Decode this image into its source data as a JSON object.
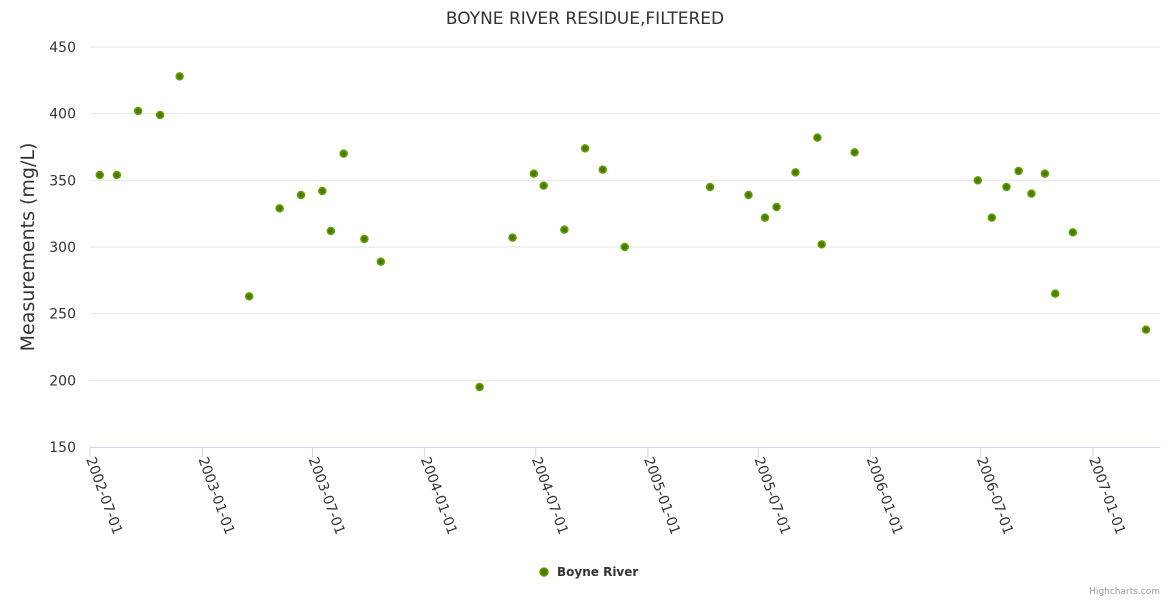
{
  "chart_data": {
    "type": "scatter",
    "title": "BOYNE RIVER RESIDUE,FILTERED",
    "ylabel": "Measurements (mg/L)",
    "xlabel": "",
    "ylim": [
      150,
      450
    ],
    "yticks": [
      150,
      200,
      250,
      300,
      350,
      400,
      450
    ],
    "xticks": [
      "2002-07-01",
      "2003-01-01",
      "2003-07-01",
      "2004-01-01",
      "2004-07-01",
      "2005-01-01",
      "2005-07-01",
      "2006-01-01",
      "2006-07-01",
      "2007-01-01"
    ],
    "grid": true,
    "legend_position": "bottom-center",
    "series": [
      {
        "name": "Boyne River",
        "color": "#66a000",
        "points": [
          {
            "x": "2002-07-17",
            "y": 354
          },
          {
            "x": "2002-08-14",
            "y": 354
          },
          {
            "x": "2002-09-18",
            "y": 402
          },
          {
            "x": "2002-10-24",
            "y": 399
          },
          {
            "x": "2002-11-25",
            "y": 428
          },
          {
            "x": "2003-03-19",
            "y": 263
          },
          {
            "x": "2003-05-08",
            "y": 329
          },
          {
            "x": "2003-06-12",
            "y": 339
          },
          {
            "x": "2003-07-17",
            "y": 342
          },
          {
            "x": "2003-07-31",
            "y": 312
          },
          {
            "x": "2003-08-21",
            "y": 370
          },
          {
            "x": "2003-09-24",
            "y": 306
          },
          {
            "x": "2003-10-21",
            "y": 289
          },
          {
            "x": "2004-03-31",
            "y": 195
          },
          {
            "x": "2004-05-24",
            "y": 307
          },
          {
            "x": "2004-06-28",
            "y": 355
          },
          {
            "x": "2004-07-14",
            "y": 346
          },
          {
            "x": "2004-08-17",
            "y": 313
          },
          {
            "x": "2004-09-20",
            "y": 374
          },
          {
            "x": "2004-10-19",
            "y": 358
          },
          {
            "x": "2004-11-24",
            "y": 300
          },
          {
            "x": "2005-04-13",
            "y": 345
          },
          {
            "x": "2005-06-15",
            "y": 339
          },
          {
            "x": "2005-07-12",
            "y": 322
          },
          {
            "x": "2005-07-31",
            "y": 330
          },
          {
            "x": "2005-08-31",
            "y": 356
          },
          {
            "x": "2005-10-06",
            "y": 382
          },
          {
            "x": "2005-10-13",
            "y": 302
          },
          {
            "x": "2005-12-06",
            "y": 371
          },
          {
            "x": "2006-06-26",
            "y": 350
          },
          {
            "x": "2006-07-19",
            "y": 322
          },
          {
            "x": "2006-08-12",
            "y": 345
          },
          {
            "x": "2006-09-01",
            "y": 357
          },
          {
            "x": "2006-09-22",
            "y": 340
          },
          {
            "x": "2006-10-14",
            "y": 355
          },
          {
            "x": "2006-10-31",
            "y": 265
          },
          {
            "x": "2006-11-29",
            "y": 311
          },
          {
            "x": "2007-03-29",
            "y": 238
          }
        ]
      }
    ]
  },
  "credit": "Highcharts.com"
}
